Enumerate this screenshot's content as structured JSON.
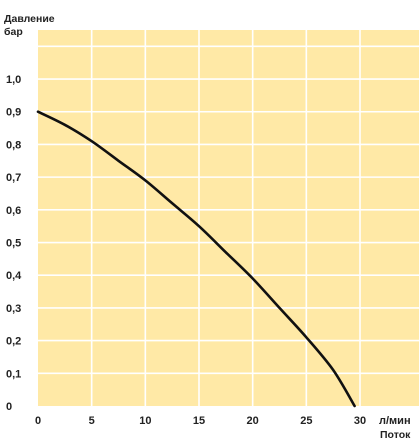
{
  "chart_data": {
    "type": "line",
    "ylabel_line1": "Давление",
    "ylabel_line2": "бар",
    "xunit": "л/мин",
    "xlabel": "Поток",
    "xlim": [
      0,
      32
    ],
    "ylim": [
      0,
      1.15
    ],
    "x_ticks": [
      "0",
      "5",
      "10",
      "15",
      "20",
      "25",
      "30"
    ],
    "x_tick_values": [
      0,
      5,
      10,
      15,
      20,
      25,
      30
    ],
    "y_ticks": [
      "0",
      "0,1",
      "0,2",
      "0,3",
      "0,4",
      "0,5",
      "0,6",
      "0,7",
      "0,8",
      "0,9",
      "1,0"
    ],
    "y_tick_values": [
      0,
      0.1,
      0.2,
      0.3,
      0.4,
      0.5,
      0.6,
      0.7,
      0.8,
      0.9,
      1.0
    ],
    "grid": true,
    "colors": {
      "plot_bg": "#FFE9A6",
      "grid": "#FFFFFF",
      "line": "#111111"
    },
    "series": [
      {
        "x": [
          0,
          2.5,
          5,
          7.5,
          10,
          12.5,
          15,
          17.5,
          20,
          22.5,
          25,
          27.5,
          29.5
        ],
        "y": [
          0.9,
          0.86,
          0.81,
          0.75,
          0.69,
          0.62,
          0.55,
          0.47,
          0.39,
          0.3,
          0.21,
          0.11,
          0.0
        ]
      }
    ]
  }
}
